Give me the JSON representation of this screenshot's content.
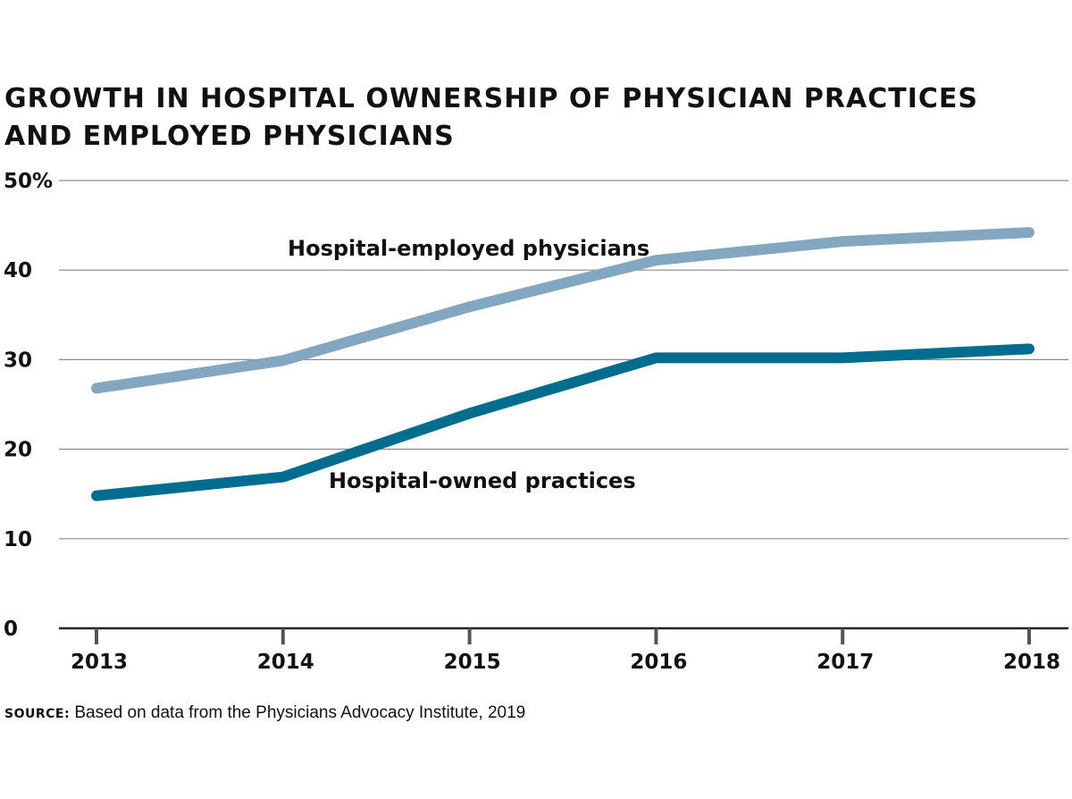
{
  "title_line1": "GROWTH IN HOSPITAL OWNERSHIP OF PHYSICIAN PRACTICES",
  "title_line2": "AND EMPLOYED PHYSICIANS",
  "source": {
    "label": "Source:",
    "text": " Based on data from the Physicians Advocacy Institute, 2019"
  },
  "chart_data": {
    "type": "line",
    "x": [
      2013,
      2014,
      2015,
      2016,
      2017,
      2018
    ],
    "xtick_labels": [
      "2013",
      "2014",
      "2015",
      "2016",
      "2017",
      "2018"
    ],
    "ylim": [
      0,
      50
    ],
    "yticks": [
      0,
      10,
      20,
      30,
      40,
      50
    ],
    "ytick_labels": [
      "0",
      "10",
      "20",
      "30",
      "40",
      "50%"
    ],
    "grid": true,
    "series": [
      {
        "name": "Hospital-employed physicians",
        "values": [
          26.8,
          29.9,
          35.9,
          41.1,
          43.2,
          44.2
        ],
        "color": "#84a7c1"
      },
      {
        "name": "Hospital-owned practices",
        "values": [
          14.8,
          16.9,
          24.0,
          30.2,
          30.2,
          31.2
        ],
        "color": "#006d8f"
      }
    ]
  }
}
